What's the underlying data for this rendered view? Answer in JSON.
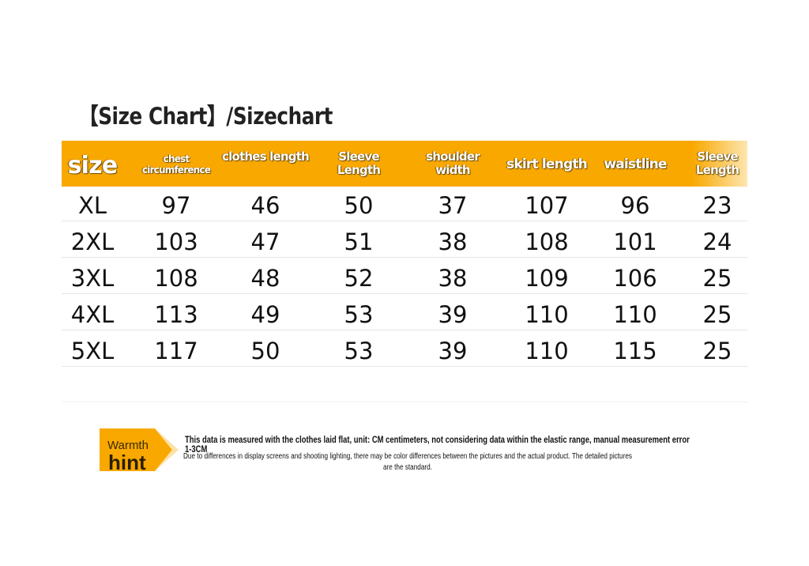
{
  "title": "【Size Chart】/Sizechart",
  "table": {
    "header": [
      "size",
      "chest circumference",
      "clothes length",
      "Sleeve Length",
      "shoulder width",
      "skirt length",
      "waistline",
      "Sleeve Length"
    ],
    "rows": [
      [
        "XL",
        97,
        46,
        50,
        37,
        107,
        96,
        23
      ],
      [
        "2XL",
        103,
        47,
        51,
        38,
        108,
        101,
        24
      ],
      [
        "3XL",
        108,
        48,
        52,
        38,
        109,
        106,
        25
      ],
      [
        "4XL",
        113,
        49,
        53,
        39,
        110,
        110,
        25
      ],
      [
        "5XL",
        117,
        50,
        53,
        39,
        110,
        115,
        25
      ]
    ]
  },
  "hint": {
    "label_top": "Warmth",
    "label_bottom": "hint",
    "line1": "This data is measured with the clothes laid flat, unit: CM centimeters, not considering data within the elastic range, manual measurement error 1-3CM",
    "line2": "Due to differences in display screens and shooting lighting, there may be color differences between the pictures and the actual product. The detailed pictures are the standard."
  }
}
